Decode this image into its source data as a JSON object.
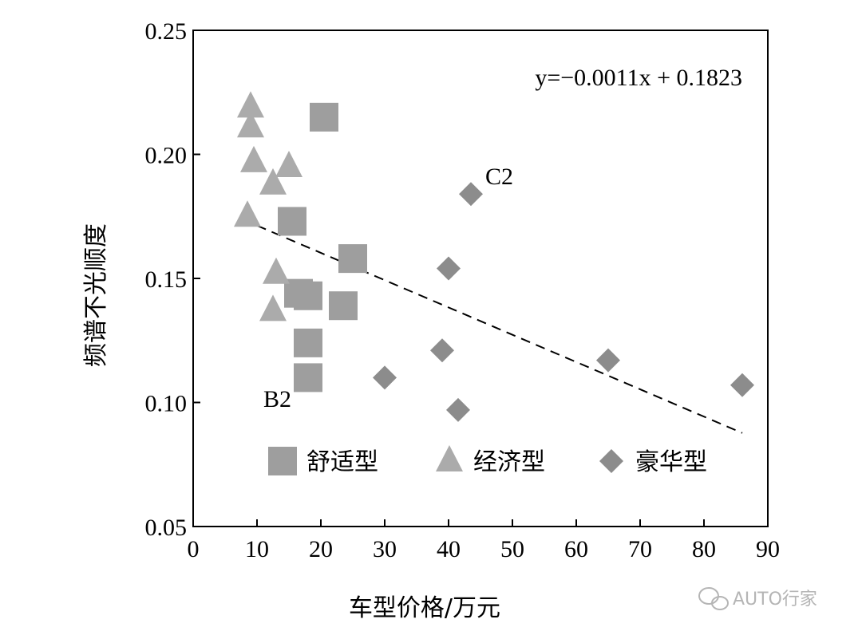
{
  "chart_data": {
    "type": "scatter",
    "xlabel": "车型价格/万元",
    "ylabel": "频谱不光顺度",
    "xlim": [
      0,
      90
    ],
    "ylim": [
      0.05,
      0.25
    ],
    "x_ticks": [
      "0",
      "10",
      "20",
      "30",
      "40",
      "50",
      "60",
      "70",
      "80",
      "90"
    ],
    "y_ticks": [
      "0.05",
      "0.10",
      "0.15",
      "0.20",
      "0.25"
    ],
    "legend_position": "bottom-inside",
    "series": [
      {
        "name": "舒适型",
        "marker": "square",
        "color": "#9e9e9e",
        "points": [
          [
            20.5,
            0.215
          ],
          [
            15.5,
            0.173
          ],
          [
            25.0,
            0.158
          ],
          [
            16.5,
            0.144
          ],
          [
            18.0,
            0.143
          ],
          [
            23.5,
            0.139
          ],
          [
            18.0,
            0.124
          ],
          [
            18.0,
            0.11
          ]
        ]
      },
      {
        "name": "经济型",
        "marker": "triangle",
        "color": "#ababab",
        "points": [
          [
            9.0,
            0.219
          ],
          [
            9.0,
            0.211
          ],
          [
            9.5,
            0.197
          ],
          [
            15.0,
            0.195
          ],
          [
            12.5,
            0.188
          ],
          [
            8.5,
            0.175
          ],
          [
            13.0,
            0.152
          ],
          [
            12.5,
            0.137
          ]
        ]
      },
      {
        "name": "豪华型",
        "marker": "diamond",
        "color": "#8c8c8c",
        "points": [
          [
            43.5,
            0.184
          ],
          [
            40.0,
            0.154
          ],
          [
            39.0,
            0.121
          ],
          [
            65.0,
            0.117
          ],
          [
            30.0,
            0.11
          ],
          [
            86.0,
            0.107
          ],
          [
            41.5,
            0.097
          ]
        ]
      }
    ],
    "trendline": {
      "equation": "y=−0.0011x + 0.1823",
      "slope": -0.0011,
      "intercept": 0.1823,
      "x_range": [
        10,
        86
      ],
      "style": "dashed"
    },
    "annotations": [
      {
        "text": "C2",
        "x": 45.5,
        "y": 0.19
      },
      {
        "text": "B2",
        "x": 14.5,
        "y": 0.101
      }
    ]
  },
  "watermark": "AUTO行家"
}
